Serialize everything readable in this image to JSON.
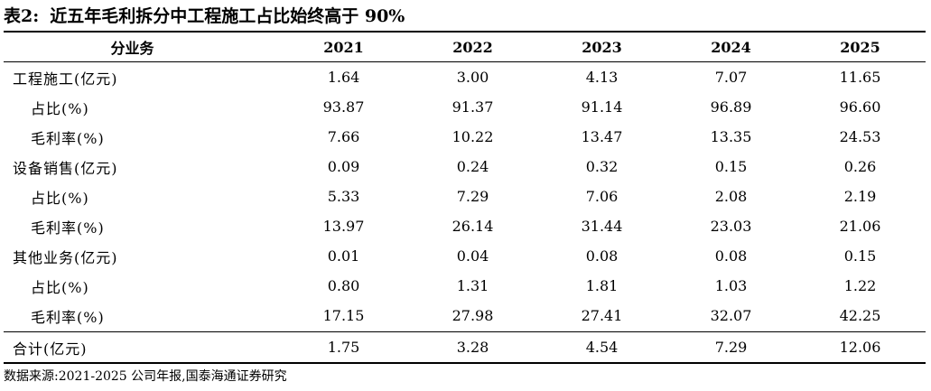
{
  "title": {
    "prefix": "表2:",
    "text": "近五年毛利拆分中工程施工占比始终高于 90%"
  },
  "table": {
    "header": {
      "label": "分业务",
      "years": [
        "2021",
        "2022",
        "2023",
        "2024",
        "2025"
      ]
    },
    "rows": [
      {
        "label": "工程施工(亿元)",
        "values": [
          "1.64",
          "3.00",
          "4.13",
          "7.07",
          "11.65"
        ]
      },
      {
        "label": "占比(%)",
        "values": [
          "93.87",
          "91.37",
          "91.14",
          "96.89",
          "96.60"
        ]
      },
      {
        "label": "毛利率(%)",
        "values": [
          "7.66",
          "10.22",
          "13.47",
          "13.35",
          "24.53"
        ]
      },
      {
        "label": "设备销售(亿元)",
        "values": [
          "0.09",
          "0.24",
          "0.32",
          "0.15",
          "0.26"
        ]
      },
      {
        "label": "占比(%)",
        "values": [
          "5.33",
          "7.29",
          "7.06",
          "2.08",
          "2.19"
        ]
      },
      {
        "label": "毛利率(%)",
        "values": [
          "13.97",
          "26.14",
          "31.44",
          "23.03",
          "21.06"
        ]
      },
      {
        "label": "其他业务(亿元)",
        "values": [
          "0.01",
          "0.04",
          "0.08",
          "0.08",
          "0.15"
        ]
      },
      {
        "label": "占比(%)",
        "values": [
          "0.80",
          "1.31",
          "1.81",
          "1.03",
          "1.22"
        ]
      },
      {
        "label": "毛利率(%)",
        "values": [
          "17.15",
          "27.98",
          "27.41",
          "32.07",
          "42.25"
        ]
      }
    ],
    "total": {
      "label": "合计(亿元)",
      "values": [
        "1.75",
        "3.28",
        "4.54",
        "7.29",
        "12.06"
      ]
    }
  },
  "source": "数据来源:2021-2025 公司年报,国泰海通证券研究"
}
